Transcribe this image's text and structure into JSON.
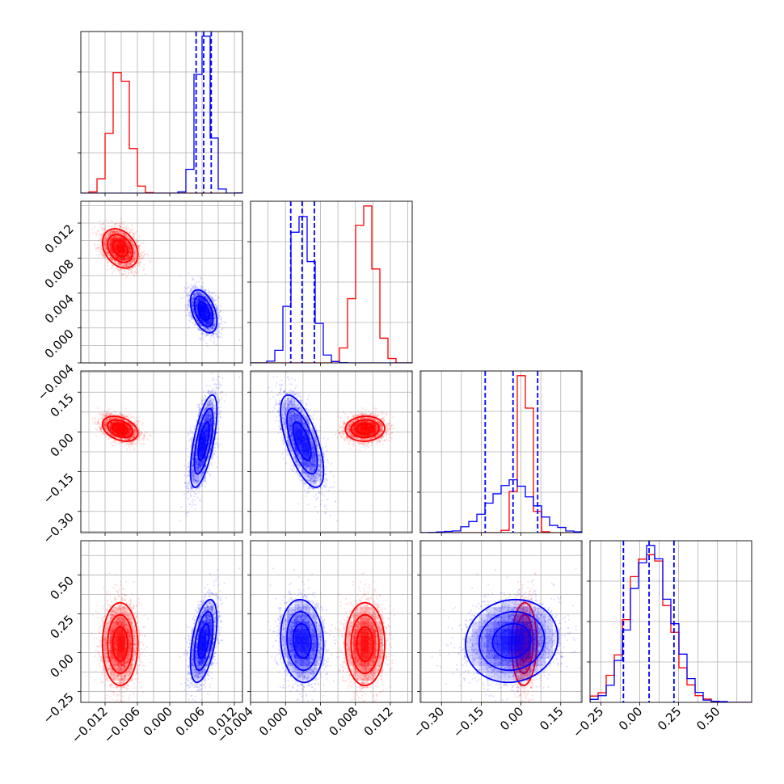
{
  "colors": {
    "red": "#ff0000",
    "blue": "#0000ff",
    "grid": "#b0b0b0",
    "frame": "#000000",
    "background": "#ffffff"
  },
  "chart_data": {
    "type": "corner",
    "grid": true,
    "dimensions": 4,
    "ranges": [
      [
        -0.0165,
        0.0135
      ],
      [
        -0.004,
        0.0145
      ],
      [
        -0.38,
        0.23
      ],
      [
        -0.32,
        0.72
      ]
    ],
    "bottom_tick_labels": [
      [
        "−0.012",
        "−0.006",
        "0.000",
        "0.006",
        "0.012"
      ],
      [
        "−0.004",
        "0.000",
        "0.004",
        "0.008",
        "0.012"
      ],
      [
        "−0.30",
        "−0.15",
        "0.00",
        "0.15"
      ],
      [
        "−0.25",
        "0.00",
        "0.25",
        "0.50"
      ]
    ],
    "bottom_tick_values": [
      [
        -0.012,
        -0.006,
        0.0,
        0.006,
        0.012
      ],
      [
        -0.004,
        0.0,
        0.004,
        0.008,
        0.012
      ],
      [
        -0.3,
        -0.15,
        0.0,
        0.15
      ],
      [
        -0.25,
        0.0,
        0.25,
        0.5
      ]
    ],
    "left_tick_labels": [
      [],
      [
        "−0.004",
        "0.000",
        "0.004",
        "0.008",
        "0.012"
      ],
      [
        "−0.30",
        "−0.15",
        "0.00",
        "0.15"
      ],
      [
        "−0.25",
        "0.00",
        "0.25",
        "0.50"
      ]
    ],
    "left_tick_values": [
      [],
      [
        -0.004,
        0.0,
        0.004,
        0.008,
        0.012
      ],
      [
        -0.3,
        -0.15,
        0.0,
        0.15
      ],
      [
        -0.25,
        0.0,
        0.25,
        0.5
      ]
    ],
    "series": [
      {
        "color": "#ff0000",
        "mean": [
          -0.0092,
          0.0091,
          0.012,
          0.055
        ],
        "std": [
          0.0016,
          0.0011,
          0.023,
          0.13
        ],
        "correlations": {
          "1-0": -0.3,
          "2-0": -0.35,
          "2-1": 0.05,
          "3-0": 0.0,
          "3-1": 0.0,
          "3-2": 0.05
        },
        "quantile_lines": []
      },
      {
        "color": "#0000ff",
        "mean": [
          0.0063,
          0.0019,
          -0.035,
          0.075
        ],
        "std": [
          0.0012,
          0.0012,
          0.085,
          0.13
        ],
        "correlations": {
          "1-0": -0.45,
          "2-0": 0.65,
          "2-1": -0.65,
          "3-0": 0.5,
          "3-1": -0.1,
          "3-2": 0.08
        },
        "quantile_lines": [
          [
            0.0049,
            0.0063,
            0.0077
          ],
          [
            0.0006,
            0.0019,
            0.0033
          ],
          [
            -0.135,
            -0.03,
            0.063
          ],
          [
            -0.105,
            0.06,
            0.22
          ]
        ]
      }
    ]
  }
}
